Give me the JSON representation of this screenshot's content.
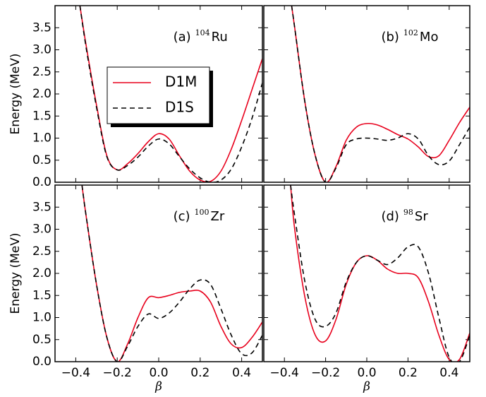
{
  "chart_data": [
    {
      "type": "line",
      "label": "(a)",
      "mass_number": "104",
      "element": "Ru",
      "y_label": "Energy (MeV)",
      "xlim": [
        -0.5,
        0.5
      ],
      "ylim": [
        0,
        4
      ],
      "xticks": [
        -0.4,
        -0.2,
        0,
        0.2,
        0.4
      ],
      "yticks": [
        {
          "value": 0,
          "label": "0.0"
        },
        0.5,
        {
          "value": 1,
          "label": "1.0"
        },
        1.5,
        {
          "value": 2,
          "label": "2.0"
        },
        2.5,
        {
          "value": 3,
          "label": "3.0"
        },
        3.5
      ],
      "show_xtick_labels": false,
      "show_ytick_labels": true,
      "legend": true,
      "x": [
        -0.38,
        -0.35,
        -0.3,
        -0.25,
        -0.2,
        -0.15,
        -0.1,
        -0.05,
        0,
        0.05,
        0.1,
        0.15,
        0.2,
        0.25,
        0.3,
        0.35,
        0.4,
        0.45,
        0.5
      ],
      "series": [
        {
          "name": "D1M",
          "color": "#e8001c",
          "dash": false,
          "values": [
            4.0,
            3.1,
            1.75,
            0.6,
            0.28,
            0.42,
            0.65,
            0.92,
            1.1,
            0.98,
            0.6,
            0.25,
            0.05,
            0.02,
            0.25,
            0.75,
            1.4,
            2.1,
            2.8
          ]
        },
        {
          "name": "D1S",
          "color": "#000000",
          "dash": true,
          "values": [
            4.0,
            3.05,
            1.7,
            0.58,
            0.28,
            0.38,
            0.57,
            0.82,
            0.98,
            0.87,
            0.58,
            0.3,
            0.1,
            0.0,
            0.05,
            0.3,
            0.8,
            1.45,
            2.25
          ]
        }
      ]
    },
    {
      "type": "line",
      "label": "(b)",
      "mass_number": "102",
      "element": "Mo",
      "xlim": [
        -0.5,
        0.5
      ],
      "ylim": [
        0,
        4
      ],
      "xticks": [
        -0.4,
        -0.2,
        0,
        0.2,
        0.4
      ],
      "yticks": [
        0,
        0.5,
        1,
        1.5,
        2,
        2.5,
        3,
        3.5
      ],
      "show_xtick_labels": false,
      "show_ytick_labels": false,
      "legend": false,
      "x": [
        -0.365,
        -0.35,
        -0.3,
        -0.25,
        -0.2,
        -0.15,
        -0.1,
        -0.05,
        0,
        0.05,
        0.1,
        0.15,
        0.2,
        0.25,
        0.3,
        0.35,
        0.4,
        0.45,
        0.5
      ],
      "series": [
        {
          "color": "#e8001c",
          "dash": false,
          "values": [
            4.0,
            3.5,
            1.8,
            0.6,
            0.0,
            0.35,
            0.95,
            1.25,
            1.33,
            1.3,
            1.2,
            1.08,
            0.98,
            0.8,
            0.58,
            0.6,
            0.95,
            1.35,
            1.7
          ]
        },
        {
          "color": "#000000",
          "dash": true,
          "values": [
            4.0,
            3.5,
            1.8,
            0.6,
            0.0,
            0.32,
            0.85,
            0.98,
            1.0,
            0.98,
            0.95,
            1.0,
            1.1,
            0.98,
            0.6,
            0.4,
            0.48,
            0.85,
            1.25
          ]
        }
      ]
    },
    {
      "type": "line",
      "label": "(c)",
      "mass_number": "100",
      "element": "Zr",
      "y_label": "Energy (MeV)",
      "x_label": "β",
      "xlim": [
        -0.5,
        0.5
      ],
      "ylim": [
        0,
        4
      ],
      "xticks": [
        {
          "value": -0.4,
          "label": "−0.4"
        },
        {
          "value": -0.2,
          "label": "−0.2"
        },
        {
          "value": 0,
          "label": "0.0"
        },
        0.2,
        0.4
      ],
      "yticks": [
        {
          "value": 0,
          "label": "0.0"
        },
        0.5,
        {
          "value": 1,
          "label": "1.0"
        },
        1.5,
        {
          "value": 2,
          "label": "2.0"
        },
        2.5,
        {
          "value": 3,
          "label": "3.0"
        },
        3.5
      ],
      "show_xtick_labels": true,
      "show_ytick_labels": true,
      "legend": false,
      "x": [
        -0.37,
        -0.35,
        -0.3,
        -0.25,
        -0.2,
        -0.15,
        -0.1,
        -0.05,
        0,
        0.05,
        0.1,
        0.15,
        0.2,
        0.25,
        0.3,
        0.35,
        0.4,
        0.45,
        0.5
      ],
      "series": [
        {
          "color": "#e8001c",
          "dash": false,
          "values": [
            4.0,
            3.3,
            1.75,
            0.55,
            0.0,
            0.4,
            1.0,
            1.45,
            1.45,
            1.5,
            1.57,
            1.6,
            1.6,
            1.35,
            0.8,
            0.4,
            0.32,
            0.55,
            0.9
          ]
        },
        {
          "color": "#000000",
          "dash": true,
          "values": [
            4.0,
            3.3,
            1.75,
            0.55,
            0.0,
            0.35,
            0.8,
            1.08,
            0.98,
            1.1,
            1.35,
            1.65,
            1.85,
            1.75,
            1.2,
            0.6,
            0.18,
            0.2,
            0.6
          ]
        }
      ]
    },
    {
      "type": "line",
      "label": "(d)",
      "mass_number": "98",
      "element": "Sr",
      "x_label": "β",
      "xlim": [
        -0.5,
        0.5
      ],
      "ylim": [
        0,
        4
      ],
      "xticks": [
        {
          "value": -0.4,
          "label": "−0.4"
        },
        {
          "value": -0.2,
          "label": "−0.2"
        },
        {
          "value": 0,
          "label": "0.0"
        },
        0.2,
        0.4
      ],
      "yticks": [
        0,
        0.5,
        1,
        1.5,
        2,
        2.5,
        3,
        3.5
      ],
      "show_xtick_labels": true,
      "show_ytick_labels": false,
      "legend": false,
      "x": [
        -0.37,
        -0.35,
        -0.3,
        -0.25,
        -0.2,
        -0.15,
        -0.1,
        -0.05,
        0,
        0.05,
        0.1,
        0.15,
        0.2,
        0.25,
        0.3,
        0.35,
        0.4,
        0.45,
        0.5
      ],
      "series": [
        {
          "color": "#e8001c",
          "dash": false,
          "values": [
            4.0,
            3.0,
            1.45,
            0.6,
            0.47,
            0.95,
            1.75,
            2.25,
            2.4,
            2.3,
            2.1,
            2.0,
            2.0,
            1.9,
            1.35,
            0.6,
            0.05,
            0.05,
            0.65
          ]
        },
        {
          "color": "#000000",
          "dash": true,
          "values": [
            4.0,
            3.3,
            1.8,
            0.95,
            0.8,
            1.1,
            1.8,
            2.25,
            2.4,
            2.3,
            2.2,
            2.35,
            2.6,
            2.6,
            2.0,
            1.0,
            0.1,
            0.0,
            0.6
          ]
        }
      ]
    }
  ]
}
